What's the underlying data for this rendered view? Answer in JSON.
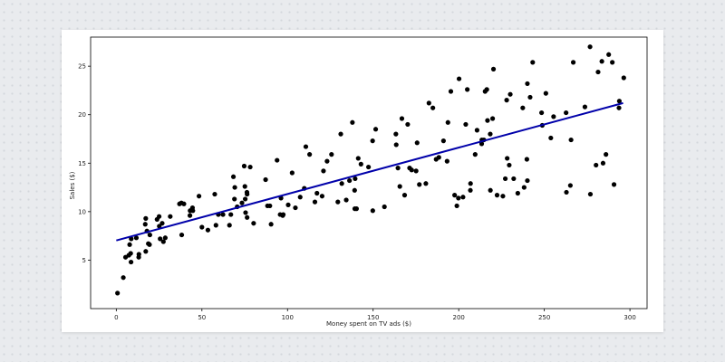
{
  "chart_data": {
    "type": "scatter",
    "title": "",
    "xlabel": "Money spent on TV ads ($)",
    "ylabel": "Sales ($)",
    "xlim": [
      -15,
      310
    ],
    "ylim": [
      0,
      28
    ],
    "xticks": [
      0,
      50,
      100,
      150,
      200,
      250,
      300
    ],
    "yticks": [
      5,
      10,
      15,
      20,
      25
    ],
    "grid": false,
    "legend": "none",
    "point_color": "#000000",
    "line_color": "#0000aa",
    "regression_line": {
      "x": [
        0,
        296
      ],
      "y": [
        7.03,
        21.2
      ]
    },
    "points": [
      [
        0.7,
        1.6
      ],
      [
        4.1,
        3.2
      ],
      [
        5.4,
        5.3
      ],
      [
        7.3,
        5.5
      ],
      [
        7.8,
        6.6
      ],
      [
        8.4,
        5.7
      ],
      [
        8.6,
        4.8
      ],
      [
        8.7,
        7.2
      ],
      [
        11.7,
        7.3
      ],
      [
        13.1,
        5.3
      ],
      [
        13.2,
        5.6
      ],
      [
        16.9,
        8.7
      ],
      [
        17.2,
        9.3
      ],
      [
        17.2,
        5.9
      ],
      [
        17.9,
        8.0
      ],
      [
        18.7,
        6.7
      ],
      [
        19.4,
        6.6
      ],
      [
        19.6,
        7.6
      ],
      [
        23.8,
        9.2
      ],
      [
        25.0,
        9.5
      ],
      [
        25.1,
        8.5
      ],
      [
        25.6,
        7.2
      ],
      [
        26.8,
        8.8
      ],
      [
        27.5,
        6.9
      ],
      [
        28.6,
        7.3
      ],
      [
        31.5,
        9.5
      ],
      [
        36.9,
        10.8
      ],
      [
        38.0,
        10.9
      ],
      [
        38.2,
        7.6
      ],
      [
        39.5,
        10.8
      ],
      [
        43.0,
        9.6
      ],
      [
        43.1,
        10.1
      ],
      [
        44.5,
        10.4
      ],
      [
        44.7,
        10.1
      ],
      [
        48.3,
        11.6
      ],
      [
        50.0,
        8.4
      ],
      [
        53.5,
        8.1
      ],
      [
        57.5,
        11.8
      ],
      [
        58.2,
        8.6
      ],
      [
        59.6,
        9.7
      ],
      [
        62.3,
        9.7
      ],
      [
        66.1,
        8.6
      ],
      [
        66.9,
        9.7
      ],
      [
        68.4,
        13.6
      ],
      [
        69.0,
        11.3
      ],
      [
        69.2,
        12.5
      ],
      [
        70.6,
        10.5
      ],
      [
        73.4,
        10.9
      ],
      [
        74.7,
        14.7
      ],
      [
        75.1,
        12.6
      ],
      [
        75.3,
        11.3
      ],
      [
        75.5,
        9.9
      ],
      [
        76.3,
        12.0
      ],
      [
        76.4,
        11.8
      ],
      [
        76.4,
        9.4
      ],
      [
        78.2,
        14.6
      ],
      [
        80.2,
        8.8
      ],
      [
        87.2,
        13.3
      ],
      [
        88.3,
        10.6
      ],
      [
        89.7,
        10.6
      ],
      [
        90.4,
        8.7
      ],
      [
        93.9,
        15.3
      ],
      [
        95.7,
        9.7
      ],
      [
        96.2,
        11.4
      ],
      [
        97.2,
        9.6
      ],
      [
        97.5,
        9.7
      ],
      [
        100.4,
        10.7
      ],
      [
        102.7,
        14.0
      ],
      [
        104.6,
        10.4
      ],
      [
        107.4,
        11.5
      ],
      [
        109.8,
        12.4
      ],
      [
        110.7,
        16.7
      ],
      [
        112.9,
        15.9
      ],
      [
        116.0,
        11.0
      ],
      [
        117.2,
        11.9
      ],
      [
        120.2,
        11.6
      ],
      [
        121.0,
        14.2
      ],
      [
        123.1,
        15.2
      ],
      [
        125.7,
        15.9
      ],
      [
        129.4,
        11.0
      ],
      [
        131.1,
        18.0
      ],
      [
        131.7,
        12.9
      ],
      [
        134.3,
        11.2
      ],
      [
        136.2,
        13.2
      ],
      [
        137.9,
        19.2
      ],
      [
        139.2,
        12.2
      ],
      [
        139.3,
        10.3
      ],
      [
        139.5,
        13.4
      ],
      [
        140.3,
        10.3
      ],
      [
        141.3,
        15.5
      ],
      [
        142.9,
        14.9
      ],
      [
        147.3,
        14.6
      ],
      [
        149.7,
        17.3
      ],
      [
        149.8,
        10.1
      ],
      [
        151.5,
        18.5
      ],
      [
        156.6,
        10.5
      ],
      [
        163.3,
        18.0
      ],
      [
        163.5,
        16.9
      ],
      [
        164.5,
        14.5
      ],
      [
        165.6,
        12.6
      ],
      [
        166.8,
        19.6
      ],
      [
        168.4,
        11.7
      ],
      [
        170.2,
        19.0
      ],
      [
        171.3,
        14.5
      ],
      [
        172.5,
        14.3
      ],
      [
        175.1,
        14.2
      ],
      [
        175.7,
        17.1
      ],
      [
        177.0,
        12.8
      ],
      [
        180.8,
        12.9
      ],
      [
        182.6,
        21.2
      ],
      [
        184.9,
        20.7
      ],
      [
        186.8,
        15.4
      ],
      [
        188.4,
        15.6
      ],
      [
        191.1,
        17.3
      ],
      [
        193.2,
        15.2
      ],
      [
        193.7,
        19.2
      ],
      [
        195.4,
        22.4
      ],
      [
        197.6,
        11.7
      ],
      [
        198.9,
        10.6
      ],
      [
        199.8,
        11.4
      ],
      [
        200.2,
        23.7
      ],
      [
        202.5,
        11.5
      ],
      [
        204.1,
        19.0
      ],
      [
        205.0,
        22.6
      ],
      [
        206.8,
        12.2
      ],
      [
        206.9,
        12.9
      ],
      [
        209.6,
        15.9
      ],
      [
        210.7,
        18.4
      ],
      [
        213.4,
        17.0
      ],
      [
        213.5,
        17.4
      ],
      [
        214.7,
        17.4
      ],
      [
        215.4,
        22.4
      ],
      [
        216.4,
        22.6
      ],
      [
        216.8,
        19.4
      ],
      [
        218.4,
        18.0
      ],
      [
        218.5,
        12.2
      ],
      [
        219.8,
        19.6
      ],
      [
        220.3,
        24.7
      ],
      [
        222.4,
        11.7
      ],
      [
        225.8,
        11.6
      ],
      [
        227.2,
        13.4
      ],
      [
        228.0,
        21.5
      ],
      [
        228.3,
        15.5
      ],
      [
        229.5,
        14.8
      ],
      [
        230.1,
        22.1
      ],
      [
        232.1,
        13.4
      ],
      [
        234.5,
        11.9
      ],
      [
        237.4,
        20.7
      ],
      [
        238.2,
        12.5
      ],
      [
        239.8,
        15.4
      ],
      [
        240.1,
        23.2
      ],
      [
        240.1,
        13.2
      ],
      [
        241.7,
        21.8
      ],
      [
        243.2,
        25.4
      ],
      [
        248.4,
        20.2
      ],
      [
        248.8,
        18.9
      ],
      [
        250.9,
        22.2
      ],
      [
        253.8,
        17.6
      ],
      [
        255.4,
        19.8
      ],
      [
        262.7,
        20.2
      ],
      [
        262.9,
        12.0
      ],
      [
        265.2,
        12.7
      ],
      [
        265.6,
        17.4
      ],
      [
        266.9,
        25.4
      ],
      [
        273.7,
        20.8
      ],
      [
        276.7,
        27.0
      ],
      [
        276.9,
        11.8
      ],
      [
        280.2,
        14.8
      ],
      [
        281.4,
        24.4
      ],
      [
        283.6,
        25.5
      ],
      [
        284.3,
        15.0
      ],
      [
        286.0,
        15.9
      ],
      [
        287.6,
        26.2
      ],
      [
        289.7,
        25.4
      ],
      [
        290.7,
        12.8
      ],
      [
        293.6,
        20.7
      ],
      [
        293.8,
        21.4
      ],
      [
        296.4,
        23.8
      ]
    ]
  }
}
